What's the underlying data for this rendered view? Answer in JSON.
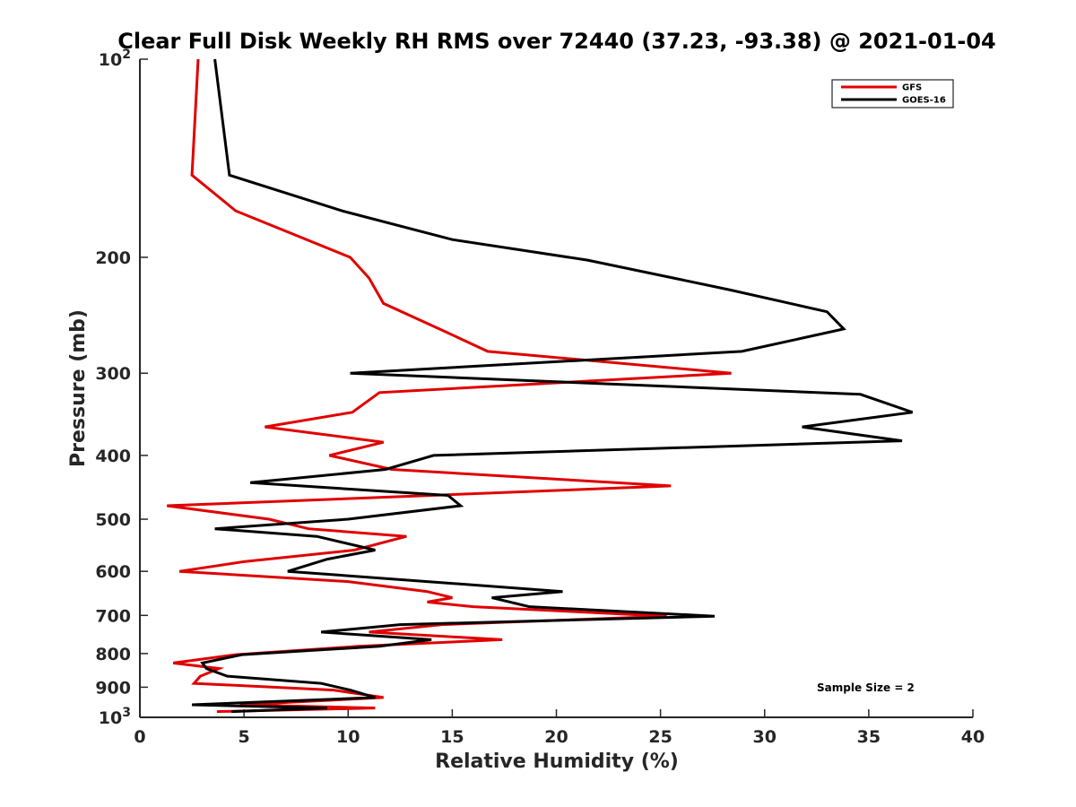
{
  "chart_data": {
    "type": "line",
    "title": "Clear Full Disk Weekly RH RMS over 72440 (37.23, -93.38) @ 2021-01-04",
    "xlabel": "Relative Humidity (%)",
    "ylabel": "Pressure (mb)",
    "xlim": [
      0,
      40
    ],
    "ylim": [
      100,
      1000
    ],
    "y_scale": "log",
    "y_reversed": true,
    "xticks": [
      0,
      5,
      10,
      15,
      20,
      25,
      30,
      35,
      40
    ],
    "yticks": [
      {
        "value": 100,
        "label": "10",
        "exp": "2"
      },
      {
        "value": 200,
        "label": "200"
      },
      {
        "value": 300,
        "label": "300"
      },
      {
        "value": 400,
        "label": "400"
      },
      {
        "value": 500,
        "label": "500"
      },
      {
        "value": 600,
        "label": "600"
      },
      {
        "value": 700,
        "label": "700"
      },
      {
        "value": 800,
        "label": "800"
      },
      {
        "value": 900,
        "label": "900"
      },
      {
        "value": 1000,
        "label": "10",
        "exp": "3"
      }
    ],
    "grid": false,
    "legend_position": "top-right",
    "annotation": "Sample Size = 2",
    "series": [
      {
        "name": "GFS",
        "color": "#e00000",
        "points": [
          [
            2.8,
            100
          ],
          [
            2.5,
            150
          ],
          [
            4.6,
            170
          ],
          [
            10.1,
            200
          ],
          [
            11.0,
            215
          ],
          [
            11.7,
            235
          ],
          [
            14.5,
            258
          ],
          [
            16.7,
            278
          ],
          [
            28.4,
            300
          ],
          [
            11.5,
            321
          ],
          [
            10.2,
            344
          ],
          [
            6.0,
            362
          ],
          [
            11.7,
            382
          ],
          [
            9.1,
            400
          ],
          [
            12.1,
            420
          ],
          [
            25.5,
            445
          ],
          [
            14.0,
            460
          ],
          [
            1.3,
            477
          ],
          [
            6.2,
            500
          ],
          [
            8.1,
            517
          ],
          [
            12.8,
            531
          ],
          [
            10.3,
            557
          ],
          [
            5.0,
            580
          ],
          [
            1.9,
            600
          ],
          [
            10.0,
            622
          ],
          [
            13.8,
            644
          ],
          [
            15.0,
            658
          ],
          [
            13.8,
            668
          ],
          [
            16.0,
            679
          ],
          [
            25.3,
            702
          ],
          [
            14.5,
            723
          ],
          [
            11.0,
            742
          ],
          [
            17.4,
            762
          ],
          [
            10.5,
            780
          ],
          [
            4.6,
            803
          ],
          [
            1.6,
            827
          ],
          [
            3.8,
            843
          ],
          [
            2.9,
            866
          ],
          [
            2.6,
            888
          ],
          [
            9.3,
            909
          ],
          [
            11.7,
            933
          ],
          [
            4.8,
            957
          ],
          [
            11.3,
            968
          ],
          [
            3.7,
            980
          ]
        ]
      },
      {
        "name": "GOES-16",
        "color": "#000000",
        "points": [
          [
            3.6,
            100
          ],
          [
            4.3,
            150
          ],
          [
            9.7,
            170
          ],
          [
            15.0,
            188
          ],
          [
            21.5,
            202
          ],
          [
            28.3,
            224
          ],
          [
            33.0,
            242
          ],
          [
            33.8,
            257
          ],
          [
            28.9,
            278
          ],
          [
            10.1,
            300
          ],
          [
            34.6,
            323
          ],
          [
            37.1,
            344
          ],
          [
            31.8,
            362
          ],
          [
            36.6,
            380
          ],
          [
            14.1,
            400
          ],
          [
            11.8,
            420
          ],
          [
            5.3,
            440
          ],
          [
            14.8,
            460
          ],
          [
            15.4,
            477
          ],
          [
            10.0,
            500
          ],
          [
            3.6,
            517
          ],
          [
            8.5,
            531
          ],
          [
            11.3,
            557
          ],
          [
            9.0,
            575
          ],
          [
            7.1,
            600
          ],
          [
            13.8,
            622
          ],
          [
            20.3,
            644
          ],
          [
            16.9,
            658
          ],
          [
            18.7,
            679
          ],
          [
            27.6,
            702
          ],
          [
            12.5,
            723
          ],
          [
            8.7,
            742
          ],
          [
            14.0,
            762
          ],
          [
            11.5,
            780
          ],
          [
            4.9,
            803
          ],
          [
            3.0,
            827
          ],
          [
            3.2,
            843
          ],
          [
            4.2,
            866
          ],
          [
            8.7,
            888
          ],
          [
            10.1,
            909
          ],
          [
            11.3,
            933
          ],
          [
            2.5,
            957
          ],
          [
            9.0,
            968
          ],
          [
            4.4,
            980
          ]
        ]
      }
    ]
  }
}
